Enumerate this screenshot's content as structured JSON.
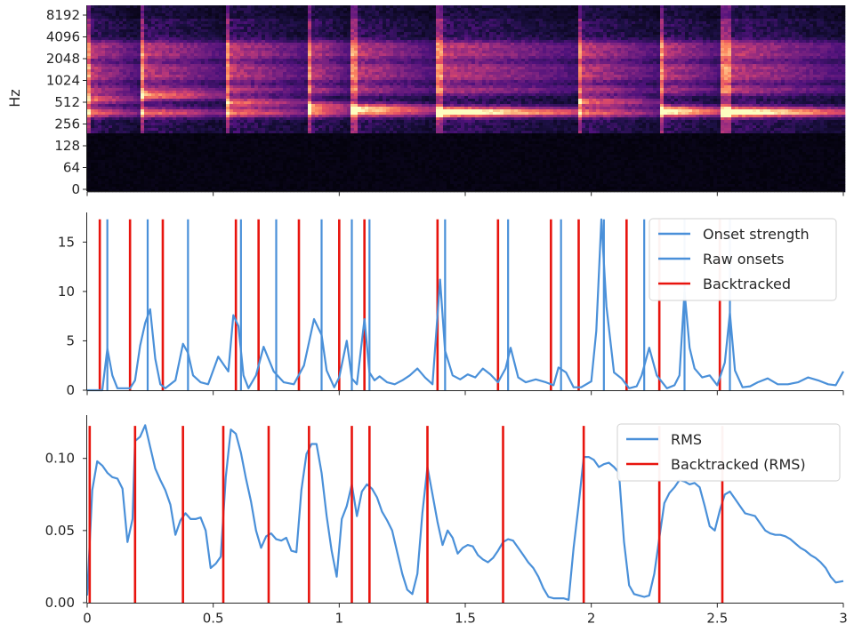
{
  "chart_data": [
    {
      "type": "heatmap",
      "title": "",
      "xlabel": "",
      "ylabel": "Hz",
      "colormap": "magma",
      "y_scale": "log",
      "y_ticks": [
        "0",
        "64",
        "128",
        "256",
        "512",
        "1024",
        "2048",
        "4096",
        "8192"
      ],
      "xlim": [
        0,
        3
      ],
      "harmonic_tracks_hz": [
        380,
        760,
        1150,
        1550,
        2300,
        3100
      ],
      "notes": [
        {
          "start": 0.0,
          "end": 0.21,
          "f0": 560
        },
        {
          "start": 0.21,
          "end": 0.55,
          "f0": 620
        },
        {
          "start": 0.55,
          "end": 0.88,
          "f0": 510
        },
        {
          "start": 0.88,
          "end": 1.05,
          "f0": 460
        },
        {
          "start": 1.05,
          "end": 1.38,
          "f0": 430
        },
        {
          "start": 1.38,
          "end": 1.95,
          "f0": 380
        },
        {
          "start": 1.95,
          "end": 2.27,
          "f0": 520
        },
        {
          "start": 2.27,
          "end": 2.52,
          "f0": 400
        },
        {
          "start": 2.52,
          "end": 3.0,
          "f0": 380
        }
      ]
    },
    {
      "type": "line",
      "title": "",
      "xlabel": "",
      "ylabel": "",
      "xlim": [
        0,
        3
      ],
      "ylim": [
        0,
        18
      ],
      "y_ticks": [
        0,
        5,
        10,
        15
      ],
      "legend": "top-right",
      "series": [
        {
          "name": "Onset strength",
          "color": "#4a90d9",
          "x": [
            0,
            0.06,
            0.08,
            0.1,
            0.12,
            0.17,
            0.19,
            0.21,
            0.23,
            0.25,
            0.27,
            0.29,
            0.31,
            0.35,
            0.38,
            0.4,
            0.42,
            0.45,
            0.48,
            0.52,
            0.56,
            0.58,
            0.6,
            0.62,
            0.64,
            0.67,
            0.7,
            0.74,
            0.78,
            0.82,
            0.86,
            0.9,
            0.93,
            0.95,
            0.98,
            1.0,
            1.03,
            1.05,
            1.07,
            1.1,
            1.12,
            1.14,
            1.16,
            1.19,
            1.22,
            1.25,
            1.28,
            1.31,
            1.34,
            1.37,
            1.4,
            1.42,
            1.45,
            1.48,
            1.51,
            1.54,
            1.57,
            1.6,
            1.63,
            1.66,
            1.68,
            1.71,
            1.74,
            1.78,
            1.82,
            1.85,
            1.87,
            1.9,
            1.93,
            1.96,
            2.0,
            2.02,
            2.04,
            2.06,
            2.09,
            2.12,
            2.15,
            2.18,
            2.2,
            2.23,
            2.26,
            2.3,
            2.33,
            2.35,
            2.37,
            2.39,
            2.41,
            2.44,
            2.47,
            2.5,
            2.53,
            2.55,
            2.57,
            2.6,
            2.63,
            2.66,
            2.7,
            2.74,
            2.78,
            2.82,
            2.86,
            2.9,
            2.94,
            2.97,
            3.0
          ],
          "values": [
            0,
            0,
            4.2,
            1.5,
            0.2,
            0.2,
            1.0,
            4.5,
            6.8,
            8.2,
            3.2,
            0.6,
            0.2,
            1.0,
            4.7,
            3.8,
            1.5,
            0.8,
            0.6,
            3.4,
            1.9,
            7.6,
            6.5,
            1.5,
            0.2,
            1.5,
            4.4,
            1.9,
            0.8,
            0.6,
            2.5,
            7.2,
            5.6,
            2.0,
            0.3,
            1.3,
            5.0,
            1.2,
            0.6,
            7.2,
            1.8,
            1.0,
            1.4,
            0.8,
            0.6,
            1.0,
            1.5,
            2.2,
            1.3,
            0.6,
            11.2,
            4.0,
            1.5,
            1.1,
            1.6,
            1.3,
            2.2,
            1.6,
            0.8,
            2.2,
            4.3,
            1.3,
            0.8,
            1.1,
            0.8,
            0.5,
            2.3,
            1.8,
            0.3,
            0.3,
            0.9,
            6.0,
            17.3,
            8.5,
            1.8,
            1.2,
            0.2,
            0.4,
            1.5,
            4.3,
            1.5,
            0.2,
            0.5,
            1.5,
            10.0,
            4.3,
            2.2,
            1.3,
            1.5,
            0.5,
            2.8,
            7.8,
            2.0,
            0.3,
            0.4,
            0.8,
            1.2,
            0.6,
            0.6,
            0.8,
            1.3,
            1.0,
            0.6,
            0.5,
            1.9
          ]
        },
        {
          "name": "Raw onsets",
          "color": "#4a90d9",
          "x": [
            0.08,
            0.24,
            0.4,
            0.61,
            0.75,
            0.93,
            1.05,
            1.12,
            1.42,
            1.67,
            1.88,
            2.05,
            2.21,
            2.37,
            2.55
          ]
        },
        {
          "name": "Backtracked",
          "color": "#e8140e",
          "x": [
            0.05,
            0.17,
            0.3,
            0.59,
            0.68,
            0.84,
            1.0,
            1.1,
            1.39,
            1.63,
            1.84,
            1.95,
            2.14,
            2.27,
            2.51
          ]
        }
      ]
    },
    {
      "type": "line",
      "title": "",
      "xlabel": "",
      "ylabel": "",
      "xlim": [
        0,
        3
      ],
      "ylim": [
        0,
        0.13
      ],
      "y_ticks": [
        "0.00",
        "0.05",
        "0.10"
      ],
      "x_ticks": [
        "0",
        "0.5",
        "1",
        "1.5",
        "2",
        "2.5",
        "3"
      ],
      "legend": "top-right",
      "series": [
        {
          "name": "RMS",
          "color": "#4a90d9",
          "x": [
            0,
            0.02,
            0.04,
            0.06,
            0.08,
            0.1,
            0.12,
            0.14,
            0.16,
            0.18,
            0.19,
            0.21,
            0.23,
            0.25,
            0.27,
            0.29,
            0.31,
            0.33,
            0.35,
            0.37,
            0.39,
            0.41,
            0.43,
            0.45,
            0.47,
            0.49,
            0.51,
            0.53,
            0.55,
            0.57,
            0.59,
            0.61,
            0.63,
            0.65,
            0.67,
            0.69,
            0.71,
            0.73,
            0.75,
            0.77,
            0.79,
            0.81,
            0.83,
            0.85,
            0.87,
            0.89,
            0.91,
            0.93,
            0.95,
            0.97,
            0.99,
            1.01,
            1.03,
            1.05,
            1.07,
            1.09,
            1.11,
            1.13,
            1.15,
            1.17,
            1.19,
            1.21,
            1.23,
            1.25,
            1.27,
            1.29,
            1.31,
            1.33,
            1.35,
            1.37,
            1.39,
            1.41,
            1.43,
            1.45,
            1.47,
            1.49,
            1.51,
            1.53,
            1.55,
            1.57,
            1.59,
            1.61,
            1.63,
            1.65,
            1.67,
            1.69,
            1.71,
            1.73,
            1.75,
            1.77,
            1.79,
            1.81,
            1.83,
            1.85,
            1.87,
            1.89,
            1.91,
            1.93,
            1.95,
            1.97,
            1.99,
            2.01,
            2.03,
            2.05,
            2.07,
            2.09,
            2.11,
            2.13,
            2.15,
            2.17,
            2.19,
            2.21,
            2.23,
            2.25,
            2.27,
            2.29,
            2.31,
            2.33,
            2.35,
            2.37,
            2.39,
            2.41,
            2.43,
            2.45,
            2.47,
            2.49,
            2.51,
            2.53,
            2.55,
            2.57,
            2.59,
            2.61,
            2.63,
            2.65,
            2.67,
            2.69,
            2.71,
            2.73,
            2.75,
            2.77,
            2.79,
            2.81,
            2.83,
            2.85,
            2.87,
            2.89,
            2.91,
            2.93,
            2.95,
            2.97,
            3.0
          ],
          "values": [
            0.005,
            0.078,
            0.098,
            0.095,
            0.09,
            0.087,
            0.086,
            0.079,
            0.042,
            0.058,
            0.112,
            0.115,
            0.123,
            0.108,
            0.093,
            0.085,
            0.078,
            0.068,
            0.047,
            0.057,
            0.062,
            0.058,
            0.058,
            0.059,
            0.05,
            0.024,
            0.027,
            0.032,
            0.087,
            0.12,
            0.117,
            0.104,
            0.086,
            0.07,
            0.05,
            0.038,
            0.046,
            0.048,
            0.044,
            0.043,
            0.045,
            0.036,
            0.035,
            0.078,
            0.103,
            0.11,
            0.11,
            0.09,
            0.06,
            0.036,
            0.018,
            0.058,
            0.067,
            0.082,
            0.06,
            0.077,
            0.082,
            0.079,
            0.073,
            0.063,
            0.057,
            0.05,
            0.035,
            0.02,
            0.009,
            0.006,
            0.02,
            0.062,
            0.094,
            0.075,
            0.056,
            0.04,
            0.05,
            0.045,
            0.034,
            0.038,
            0.04,
            0.039,
            0.033,
            0.03,
            0.028,
            0.031,
            0.036,
            0.042,
            0.044,
            0.043,
            0.038,
            0.033,
            0.028,
            0.024,
            0.018,
            0.01,
            0.004,
            0.003,
            0.003,
            0.003,
            0.002,
            0.038,
            0.068,
            0.101,
            0.101,
            0.099,
            0.094,
            0.096,
            0.097,
            0.094,
            0.09,
            0.042,
            0.012,
            0.006,
            0.005,
            0.004,
            0.005,
            0.02,
            0.045,
            0.069,
            0.076,
            0.08,
            0.085,
            0.084,
            0.082,
            0.083,
            0.08,
            0.067,
            0.053,
            0.05,
            0.064,
            0.075,
            0.077,
            0.072,
            0.067,
            0.062,
            0.061,
            0.06,
            0.055,
            0.05,
            0.048,
            0.047,
            0.047,
            0.046,
            0.044,
            0.041,
            0.038,
            0.036,
            0.033,
            0.031,
            0.028,
            0.024,
            0.018,
            0.014,
            0.015
          ]
        },
        {
          "name": "Backtracked (RMS)",
          "color": "#e8140e",
          "x": [
            0.01,
            0.19,
            0.38,
            0.54,
            0.72,
            0.88,
            1.05,
            1.12,
            1.35,
            1.65,
            1.97,
            2.27,
            2.52
          ]
        }
      ]
    }
  ]
}
